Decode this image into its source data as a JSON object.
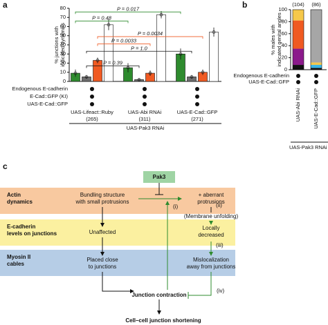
{
  "panel_labels": [
    "a",
    "b",
    "c"
  ],
  "chart_data": [
    {
      "type": "bar",
      "ylabel": [
        "% junctions with",
        "indicated dynamics"
      ],
      "categories": [
        "UAS-Lifeact::Ruby",
        "UAS-Abi RNAi",
        "UAS-E-Cad::GFP"
      ],
      "counts": [
        "(265)",
        "(311)",
        "(271)"
      ],
      "series": [
        {
          "color": "#2e8b2e",
          "values": [
            9,
            15,
            30
          ],
          "errors": [
            4,
            5,
            6
          ]
        },
        {
          "color": "#6e6e6e",
          "values": [
            5,
            2,
            5
          ],
          "errors": [
            2,
            1,
            2
          ]
        },
        {
          "color": "#f05a22",
          "values": [
            23,
            9,
            10
          ],
          "errors": [
            3,
            3,
            3
          ]
        },
        {
          "color": "#ffffff",
          "values": [
            62,
            73,
            54
          ],
          "errors": [
            6,
            4,
            5
          ]
        }
      ],
      "ylim": [
        0,
        80
      ],
      "yticks": [
        0,
        10,
        20,
        30,
        40,
        50,
        60,
        70,
        80
      ],
      "annotations": [
        "P = 0.017",
        "P = 0.48",
        "P = 0.0034",
        "P = 0.0033",
        "P = 1.0",
        "P = 0.39"
      ],
      "row_labels": [
        "Endogenous E-cadherin",
        "E-Cad::GFP (KI)",
        "UAS-E-Cad::GFP"
      ],
      "footer": "UAS-Pak3 RNAi"
    },
    {
      "type": "stacked_bar",
      "ylabel": [
        "% males with",
        "indicated genital angles"
      ],
      "categories": [
        "UAS-Abi RNAi",
        "UAS-E-Cad::GFP"
      ],
      "counts": [
        "(104)",
        "(86)"
      ],
      "series": [
        {
          "color": "#111111",
          "values": [
            8,
            3
          ]
        },
        {
          "color": "#8b1a8b",
          "values": [
            27,
            0
          ]
        },
        {
          "color": "#38b6e8",
          "values": [
            0,
            5
          ]
        },
        {
          "color": "#f05a22",
          "values": [
            47,
            0
          ]
        },
        {
          "color": "#f6c84a",
          "values": [
            18,
            4
          ]
        },
        {
          "color": "#a6a6a6",
          "values": [
            0,
            88
          ]
        }
      ],
      "ylim": [
        0,
        100
      ],
      "yticks": [
        0,
        20,
        40,
        60,
        80,
        100
      ],
      "row_labels": [
        "Endogenous E-cadherin",
        "UAS-E-Cad::GFP"
      ],
      "footer": "UAS-Pak3 RNAi"
    }
  ],
  "diagram": {
    "pak3": "Pak3",
    "rows": [
      [
        "Actin",
        "dynamics"
      ],
      [
        "E-cadherin",
        "levels on junctions"
      ],
      [
        "Myosin II",
        "cables"
      ]
    ],
    "left": [
      [
        "Bundling structure",
        "with small protrusions"
      ],
      [
        "Unaffected"
      ],
      [
        "Placed close",
        "to junctions"
      ]
    ],
    "right": [
      [
        "+ aberrant",
        "protrusions"
      ],
      [
        "Locally",
        "decreased"
      ],
      [
        "Mislocalization",
        "away from junctions"
      ]
    ],
    "membrane": "(Membrane unfolding)",
    "steps": [
      "(i)",
      "(ii)",
      "(iii)",
      "(iv)"
    ],
    "contraction": "Junction contraction",
    "outcome": "Cell–cell junction shortening"
  }
}
